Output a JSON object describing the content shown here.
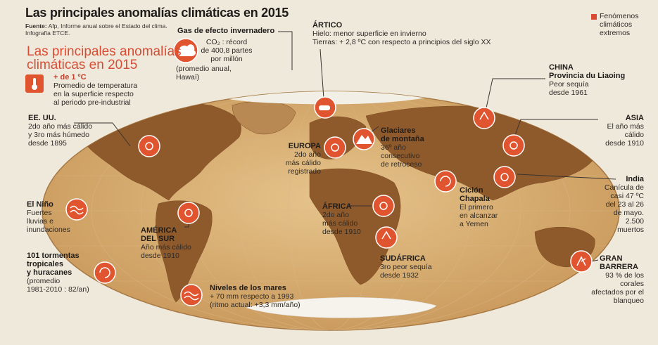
{
  "title": "Las principales anomalías climáticas en 2015",
  "source": {
    "label": "Fuente:",
    "text": "Afp, Informe anual sobre el Estado del clima.",
    "infografia": "Infografía ETCE."
  },
  "subtitle": "Las principales anomalías climáticas en 2015",
  "legend": "Fenómenos climáticos extremos",
  "colors": {
    "accent": "#d94c33",
    "land": "#b07a44",
    "ocean": "#d8b27a",
    "ice": "#ffffff"
  },
  "temperature": {
    "icon": "thermometer-icon",
    "value": "+ de 1 ºC",
    "lines": [
      "Promedio de temperatura",
      "en la superficie respecto",
      "al periodo pre-industrial"
    ]
  },
  "gas": {
    "title": "Gas de efecto invernadero",
    "icon": "cloud-co2-icon",
    "lines": [
      "CO₂ : récord",
      "de 400,8 partes",
      "por millón",
      "(promedio anual,",
      "Hawaï)"
    ]
  },
  "artico": {
    "title": "ÁRTICO",
    "lines": [
      "Hielo: menor superficie en invierno",
      "Tierras: + 2,8 ºC con respecto a principios del siglo XX"
    ]
  },
  "china": {
    "title1": "CHINA",
    "title2": "Provincia du Liaoing",
    "lines": [
      "Peor sequía",
      "desde 1961"
    ]
  },
  "asia": {
    "title": "ASIA",
    "lines": [
      "El año más",
      "cálido",
      "desde 1910"
    ]
  },
  "india": {
    "title": "India",
    "lines": [
      "Canícula de",
      "casi 47 ºC",
      "del 23 al 26",
      "de mayo.",
      "2.500",
      "muertos"
    ]
  },
  "barrera": {
    "title1": "GRAN",
    "title2": "BARRERA",
    "lines": [
      "93 % de los",
      "corales",
      "afectados por el",
      "blanqueo"
    ]
  },
  "eeuu": {
    "title": "EE. UU.",
    "lines": [
      "2do año más cálido",
      "y 3ro más húmedo",
      "desde 1895"
    ]
  },
  "nino": {
    "title": "El Niño",
    "lines": [
      "Fuertes",
      "lluvias e",
      "inundaciones"
    ]
  },
  "tormentas": {
    "title1": "101 tormentas",
    "title2": "tropicales",
    "title3": "y huracanes",
    "lines": [
      "(promedio",
      "1981-2010 : 82/an)"
    ]
  },
  "america": {
    "title1": "AMÉRICA",
    "title2": "DEL SUR",
    "lines": [
      "Año más cálido",
      "desde 1910"
    ]
  },
  "europa": {
    "title": "EUROPA",
    "lines": [
      "2do año",
      "más cálido",
      "registrado"
    ]
  },
  "glaciares": {
    "title1": "Glaciares",
    "title2": "de montaña",
    "lines": [
      "36º año",
      "consecutivo",
      "de retroceso"
    ]
  },
  "chapala": {
    "title1": "Ciclón",
    "title2": "Chapala",
    "lines": [
      "El primero",
      "en alcanzar",
      "a Yemen"
    ]
  },
  "africa": {
    "title": "ÁFRICA",
    "lines": [
      "2do año",
      "más cálido",
      "desde 1910"
    ]
  },
  "sudafrica": {
    "title": "SUDÁFRICA",
    "lines": [
      "3ro peor sequía",
      "desde 1932"
    ]
  },
  "mares": {
    "title": "Niveles de los mares",
    "lines": [
      "+ 70 mm respecto a 1993",
      "(ritmo actual: +3,3 mm/año)"
    ]
  }
}
